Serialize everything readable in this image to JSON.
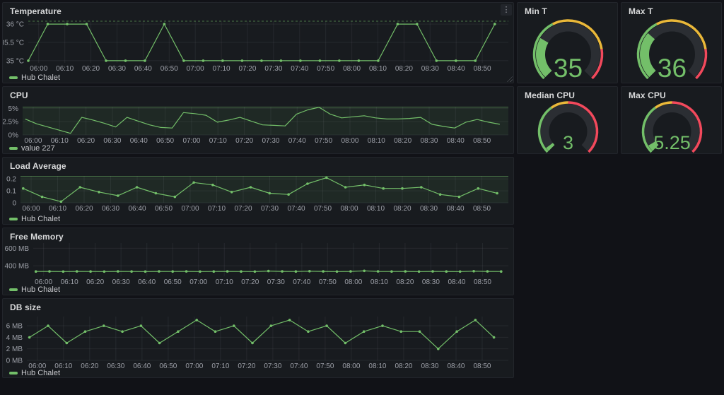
{
  "colors": {
    "green": "#73BF69",
    "yellow": "#EAB839",
    "red": "#F2495C",
    "panel_bg": "#181B1F",
    "page_bg": "#111217"
  },
  "panel_menu_glyph": "⋮",
  "chart_data": [
    {
      "type": "line",
      "title": "Temperature",
      "legend": "Hub Chalet",
      "color": "#73BF69",
      "x_tick_labels": [
        "06:00",
        "06:10",
        "06:20",
        "06:30",
        "06:40",
        "06:50",
        "07:00",
        "07:10",
        "07:20",
        "07:30",
        "07:40",
        "07:50",
        "08:00",
        "08:10",
        "08:20",
        "08:30",
        "08:40",
        "08:50"
      ],
      "x_ticks": [
        0,
        10,
        20,
        30,
        40,
        50,
        60,
        70,
        80,
        90,
        100,
        110,
        120,
        130,
        140,
        150,
        160,
        170
      ],
      "xlim": [
        -4,
        180
      ],
      "ylim": [
        34.94,
        36.08
      ],
      "y_ticks": [
        {
          "v": 35,
          "label": "35 °C"
        },
        {
          "v": 35.5,
          "label": "35.5 °C"
        },
        {
          "v": 36,
          "label": "36 °C"
        }
      ],
      "series": [
        {
          "name": "Hub Chalet",
          "t_start": -4,
          "t_step": 7.45,
          "values": [
            35,
            36,
            36,
            36,
            35,
            35,
            35,
            36,
            35,
            35,
            35,
            35,
            35,
            35,
            35,
            35,
            35,
            35,
            35,
            36,
            36,
            35,
            35,
            35,
            36
          ]
        }
      ],
      "show_points": true,
      "area_tint": false,
      "top_dashed_line": true
    },
    {
      "type": "gauge",
      "title": "Min T",
      "value": "35",
      "fill_frac": 0.28,
      "thresholds": [
        {
          "color": "#73BF69",
          "from": 0,
          "to": 0.4
        },
        {
          "color": "#EAB839",
          "from": 0.4,
          "to": 0.8
        },
        {
          "color": "#F2495C",
          "from": 0.8,
          "to": 1
        }
      ]
    },
    {
      "type": "gauge",
      "title": "Max T",
      "value": "36",
      "fill_frac": 0.32,
      "thresholds": [
        {
          "color": "#73BF69",
          "from": 0,
          "to": 0.4
        },
        {
          "color": "#EAB839",
          "from": 0.4,
          "to": 0.8
        },
        {
          "color": "#F2495C",
          "from": 0.8,
          "to": 1
        }
      ]
    },
    {
      "type": "line",
      "title": "CPU",
      "legend": "value 227",
      "color": "#73BF69",
      "x_tick_labels": [
        "06:00",
        "06:10",
        "06:20",
        "06:30",
        "06:40",
        "06:50",
        "07:00",
        "07:10",
        "07:20",
        "07:30",
        "07:40",
        "07:50",
        "08:00",
        "08:10",
        "08:20",
        "08:30",
        "08:40",
        "08:50"
      ],
      "x_ticks": [
        0,
        10,
        20,
        30,
        40,
        50,
        60,
        70,
        80,
        90,
        100,
        110,
        120,
        130,
        140,
        150,
        160,
        170
      ],
      "xlim": [
        -4,
        180
      ],
      "ylim": [
        0,
        5.3
      ],
      "y_ticks": [
        {
          "v": 0,
          "label": "0%"
        },
        {
          "v": 2.5,
          "label": "2.5%"
        },
        {
          "v": 5,
          "label": "5%"
        }
      ],
      "series": [
        {
          "name": "value 227",
          "t_start": -3,
          "t_step": 4.28,
          "values": [
            3.0,
            2.1,
            1.5,
            0.9,
            0.3,
            3.3,
            2.8,
            2.2,
            1.5,
            3.3,
            2.6,
            1.9,
            1.4,
            1.3,
            4.2,
            4.0,
            3.7,
            2.4,
            2.8,
            3.3,
            2.6,
            1.9,
            1.8,
            1.7,
            3.9,
            4.7,
            5.2,
            3.9,
            3.2,
            3.4,
            3.6,
            3.2,
            3.0,
            3.0,
            3.1,
            3.3,
            2.0,
            1.6,
            1.3,
            2.4,
            2.9,
            2.4,
            2.0
          ]
        }
      ],
      "show_points": false,
      "area_tint": true,
      "top_dashed_line": false
    },
    {
      "type": "gauge",
      "title": "Median CPU",
      "value": "3",
      "fill_frac": 0.03,
      "thresholds": [
        {
          "color": "#73BF69",
          "from": 0,
          "to": 0.37
        },
        {
          "color": "#EAB839",
          "from": 0.37,
          "to": 0.5
        },
        {
          "color": "#F2495C",
          "from": 0.5,
          "to": 1
        }
      ]
    },
    {
      "type": "gauge",
      "title": "Max CPU",
      "value": "5.25",
      "fill_frac": 0.0525,
      "thresholds": [
        {
          "color": "#73BF69",
          "from": 0,
          "to": 0.37
        },
        {
          "color": "#EAB839",
          "from": 0.37,
          "to": 0.5
        },
        {
          "color": "#F2495C",
          "from": 0.5,
          "to": 1
        }
      ]
    },
    {
      "type": "line",
      "title": "Load Average",
      "legend": "Hub Chalet",
      "color": "#73BF69",
      "x_tick_labels": [
        "06:00",
        "06:10",
        "06:20",
        "06:30",
        "06:40",
        "06:50",
        "07:00",
        "07:10",
        "07:20",
        "07:30",
        "07:40",
        "07:50",
        "08:00",
        "08:10",
        "08:20",
        "08:30",
        "08:40",
        "08:50"
      ],
      "x_ticks": [
        0,
        10,
        20,
        30,
        40,
        50,
        60,
        70,
        80,
        90,
        100,
        110,
        120,
        130,
        140,
        150,
        160,
        170
      ],
      "xlim": [
        -4,
        180
      ],
      "ylim": [
        0,
        0.225
      ],
      "y_ticks": [
        {
          "v": 0,
          "label": "0"
        },
        {
          "v": 0.1,
          "label": "0.1"
        },
        {
          "v": 0.2,
          "label": "0.2"
        }
      ],
      "series": [
        {
          "name": "Hub Chalet",
          "t_start": -3,
          "t_step": 7.15,
          "values": [
            0.12,
            0.05,
            0.01,
            0.13,
            0.09,
            0.06,
            0.13,
            0.08,
            0.05,
            0.17,
            0.15,
            0.09,
            0.13,
            0.08,
            0.07,
            0.16,
            0.21,
            0.13,
            0.15,
            0.12,
            0.12,
            0.13,
            0.07,
            0.05,
            0.12,
            0.08
          ]
        }
      ],
      "show_points": true,
      "area_tint": true,
      "top_dashed_line": false
    },
    {
      "type": "line",
      "title": "Free Memory",
      "legend": "Hub Chalet",
      "color": "#73BF69",
      "x_tick_labels": [
        "06:00",
        "06:10",
        "06:20",
        "06:30",
        "06:40",
        "06:50",
        "07:00",
        "07:10",
        "07:20",
        "07:30",
        "07:40",
        "07:50",
        "08:00",
        "08:10",
        "08:20",
        "08:30",
        "08:40",
        "08:50"
      ],
      "x_ticks": [
        0,
        10,
        20,
        30,
        40,
        50,
        60,
        70,
        80,
        90,
        100,
        110,
        120,
        130,
        140,
        150,
        160,
        170
      ],
      "xlim": [
        -4,
        180
      ],
      "ylim": [
        280,
        660
      ],
      "y_ticks": [
        {
          "v": 400,
          "label": "400 MB"
        },
        {
          "v": 600,
          "label": "600 MB"
        }
      ],
      "series": [
        {
          "name": "Hub Chalet",
          "t_start": -3,
          "t_step": 5.3,
          "values": [
            335,
            336,
            334,
            336,
            335,
            334,
            336,
            335,
            334,
            336,
            335,
            336,
            334,
            335,
            336,
            335,
            334,
            340,
            336,
            335,
            338,
            336,
            334,
            336,
            342,
            336,
            335,
            336,
            334,
            336,
            335,
            334,
            338,
            336,
            335
          ]
        }
      ],
      "show_points": true,
      "area_tint": false,
      "top_dashed_line": false
    },
    {
      "type": "line",
      "title": "DB size",
      "legend": "Hub Chalet",
      "color": "#73BF69",
      "x_tick_labels": [
        "06:00",
        "06:10",
        "06:20",
        "06:30",
        "06:40",
        "06:50",
        "07:00",
        "07:10",
        "07:20",
        "07:30",
        "07:40",
        "07:50",
        "08:00",
        "08:10",
        "08:20",
        "08:30",
        "08:40",
        "08:50"
      ],
      "x_ticks": [
        0,
        10,
        20,
        30,
        40,
        50,
        60,
        70,
        80,
        90,
        100,
        110,
        120,
        130,
        140,
        150,
        160,
        170
      ],
      "xlim": [
        -4,
        180
      ],
      "ylim": [
        0,
        7.6
      ],
      "y_ticks": [
        {
          "v": 0,
          "label": "0 MB"
        },
        {
          "v": 2,
          "label": "2 MB"
        },
        {
          "v": 4,
          "label": "4 MB"
        },
        {
          "v": 6,
          "label": "6 MB"
        }
      ],
      "series": [
        {
          "name": "Hub Chalet",
          "t_start": -3,
          "t_step": 7.1,
          "values": [
            4,
            6,
            3,
            5,
            6,
            5,
            6,
            3,
            5,
            7,
            5,
            6,
            3,
            6,
            7,
            5,
            6,
            3,
            5,
            6,
            5,
            5,
            2,
            5,
            7,
            4
          ]
        }
      ],
      "show_points": true,
      "area_tint": false,
      "top_dashed_line": false
    }
  ]
}
